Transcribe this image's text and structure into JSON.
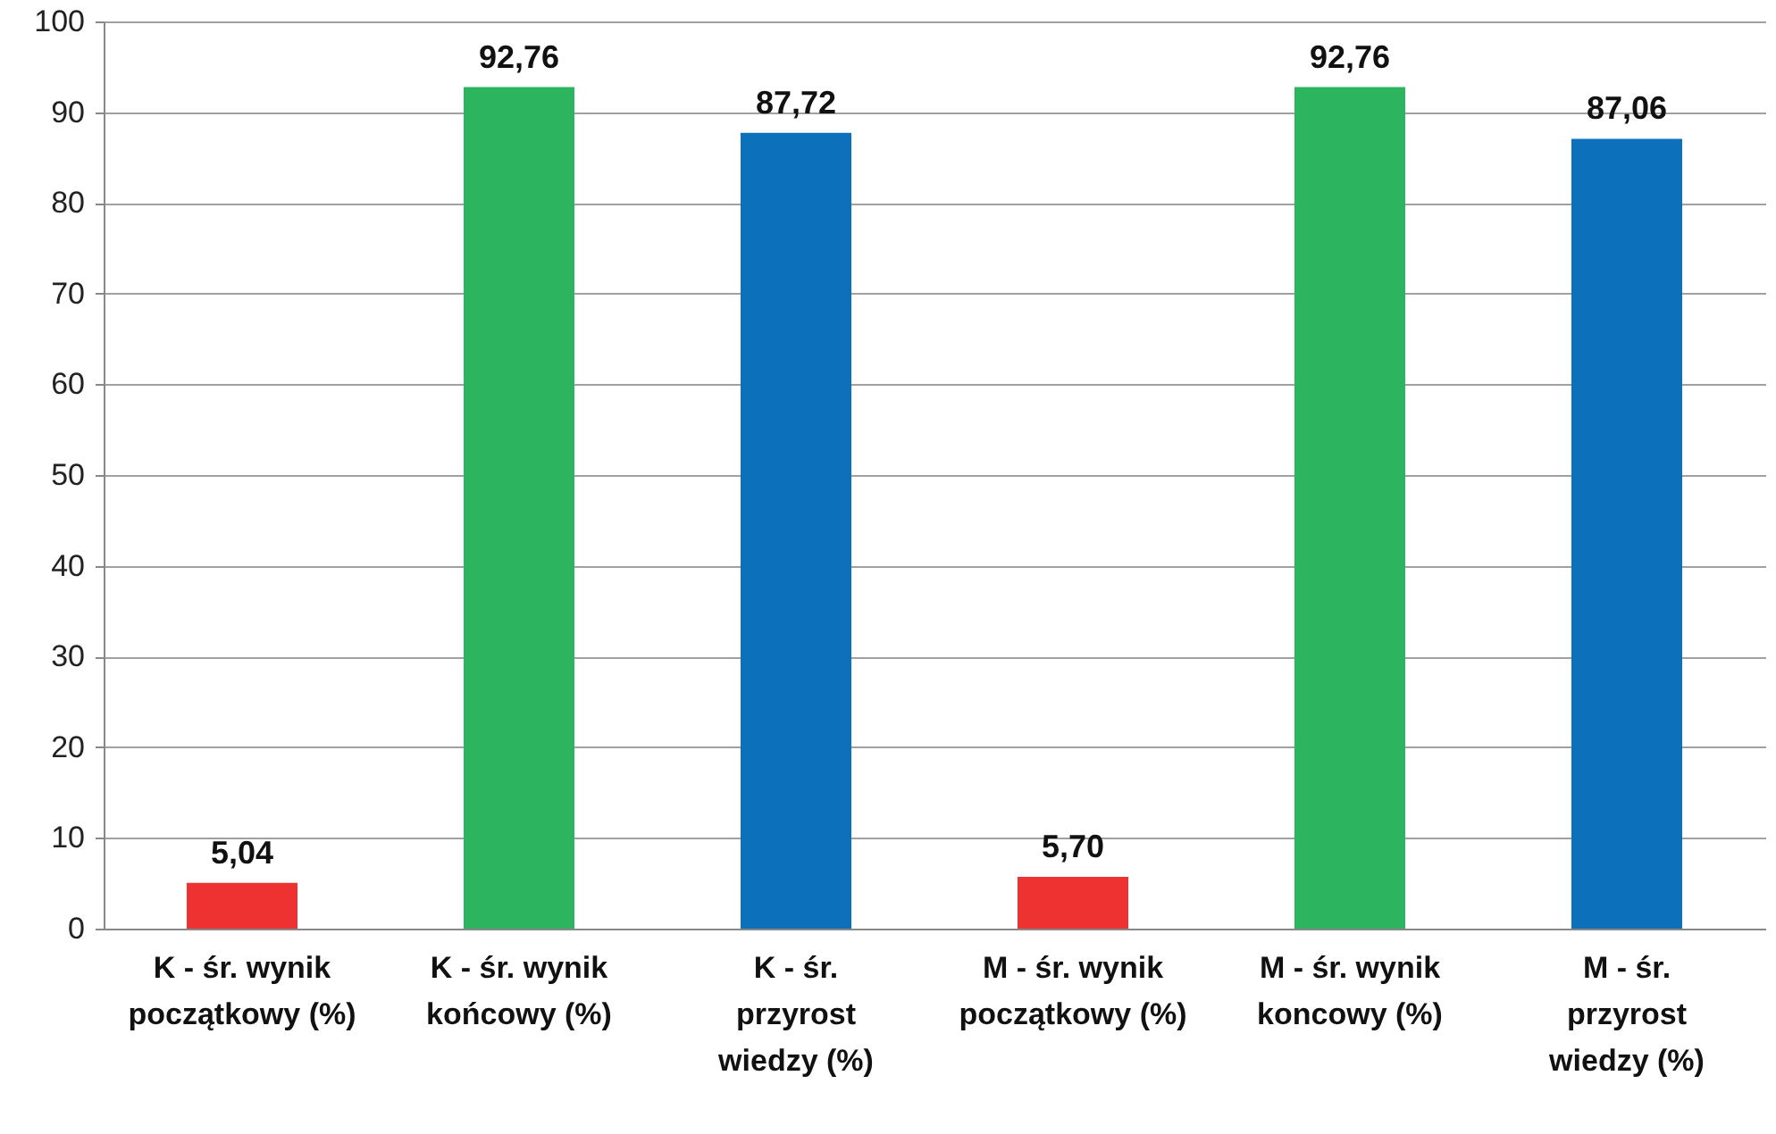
{
  "chart_data": {
    "type": "bar",
    "categories": [
      "K - śr. wynik początkowy (%)",
      "K - śr. wynik końcowy (%)",
      "K - śr. przyrost wiedzy (%)",
      "M - śr. wynik początkowy (%)",
      "M - śr. wynik koncowy (%)",
      "M - śr. przyrost wiedzy (%)"
    ],
    "values": [
      5.04,
      92.76,
      87.72,
      5.7,
      92.76,
      87.06
    ],
    "colors": [
      "#ee3131",
      "#2db45e",
      "#0c70bb",
      "#ee3131",
      "#2db45e",
      "#0c70bb"
    ],
    "value_labels": [
      "5,04",
      "92,76",
      "87,72",
      "5,70",
      "92,76",
      "87,06"
    ],
    "ylim": [
      0,
      100
    ],
    "yticks": [
      0,
      10,
      20,
      30,
      40,
      50,
      60,
      70,
      80,
      90,
      100
    ],
    "grid": "y"
  }
}
